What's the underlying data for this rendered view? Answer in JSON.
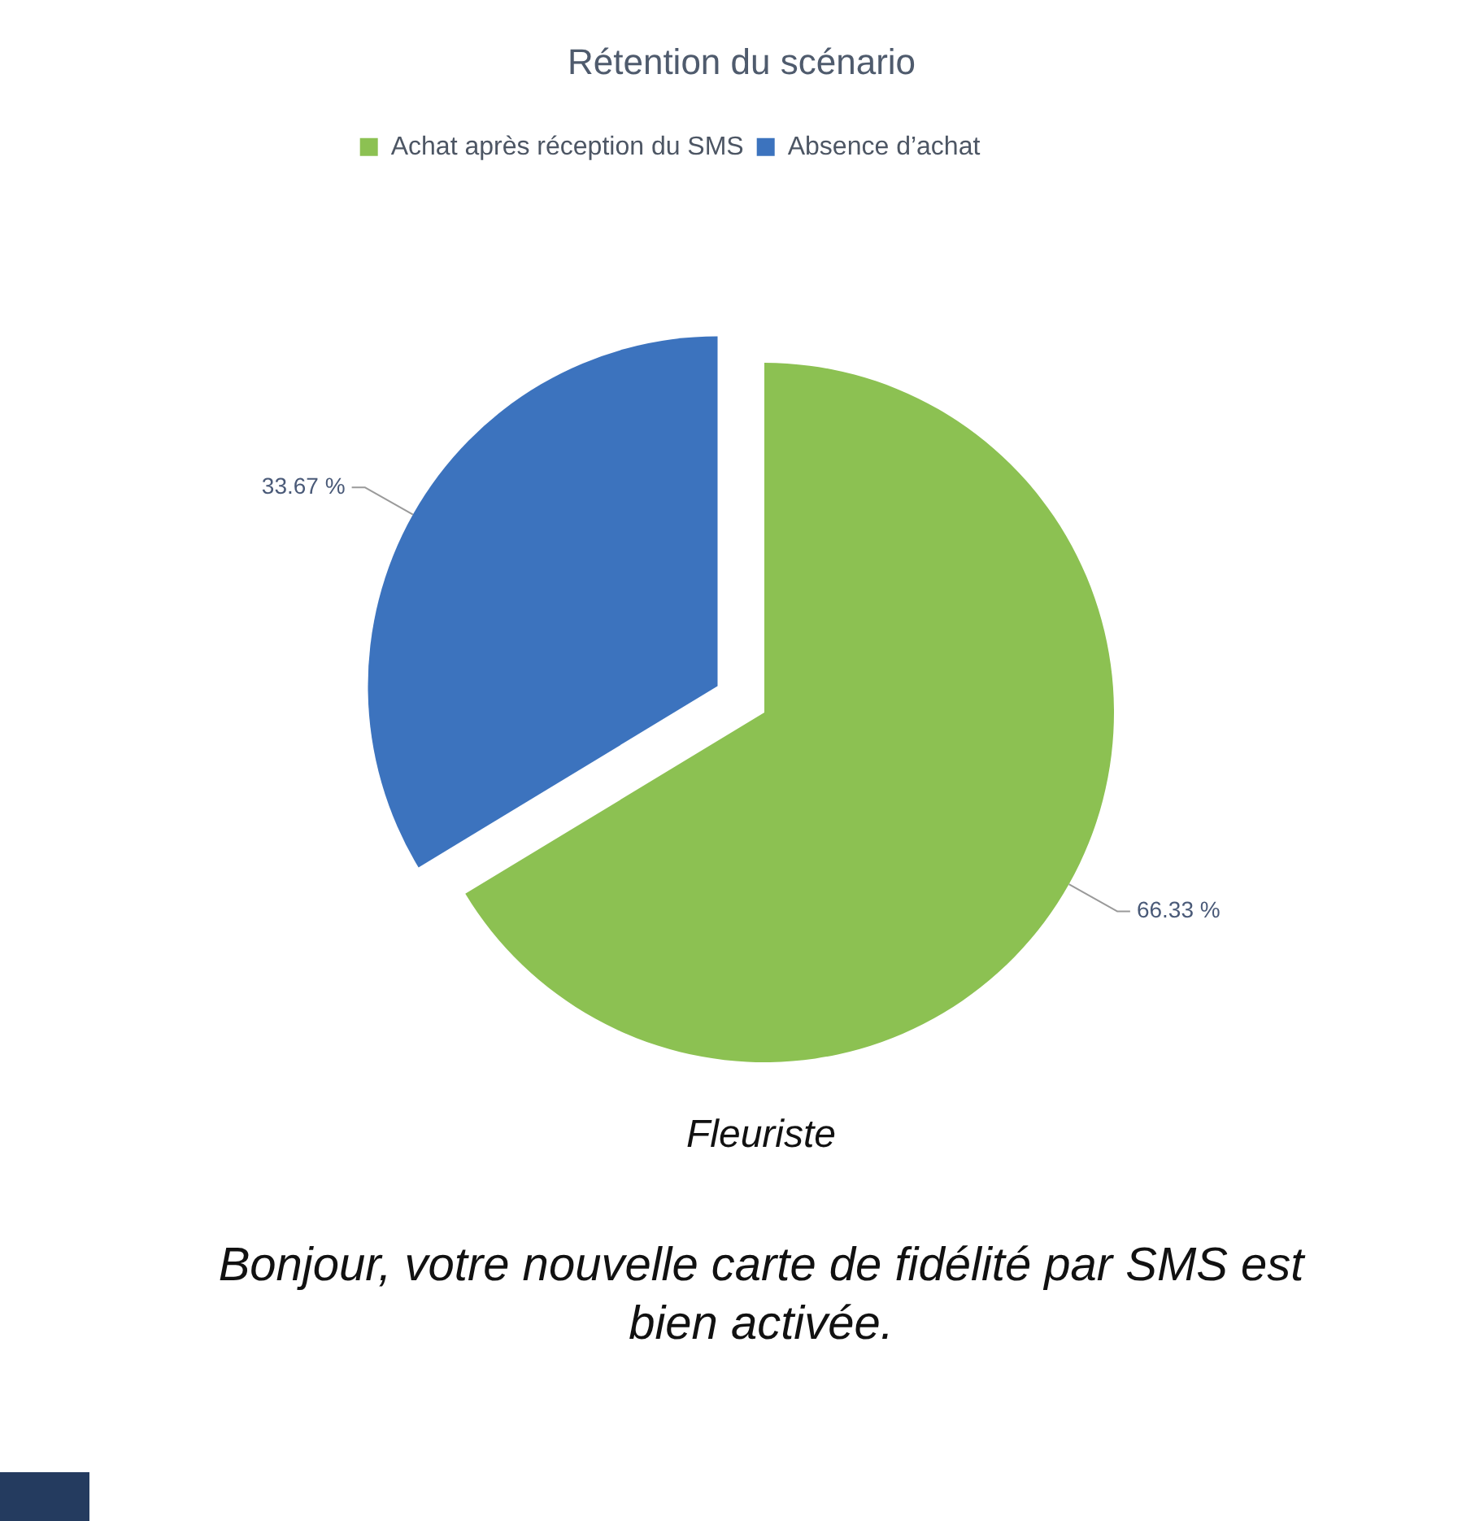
{
  "chart_data": {
    "type": "pie",
    "title": "Rétention du scénario",
    "categories": [
      "Achat après réception du SMS",
      "Absence d’achat"
    ],
    "values": [
      66.33,
      33.67
    ],
    "colors": [
      "#8cc152",
      "#3c73be"
    ],
    "value_labels": [
      "66.33 %",
      "33.67 %"
    ],
    "legend": "top",
    "annotations": [
      "Fleuriste",
      "Bonjour, votre nouvelle carte de fidélité par SMS est bien activée."
    ]
  }
}
